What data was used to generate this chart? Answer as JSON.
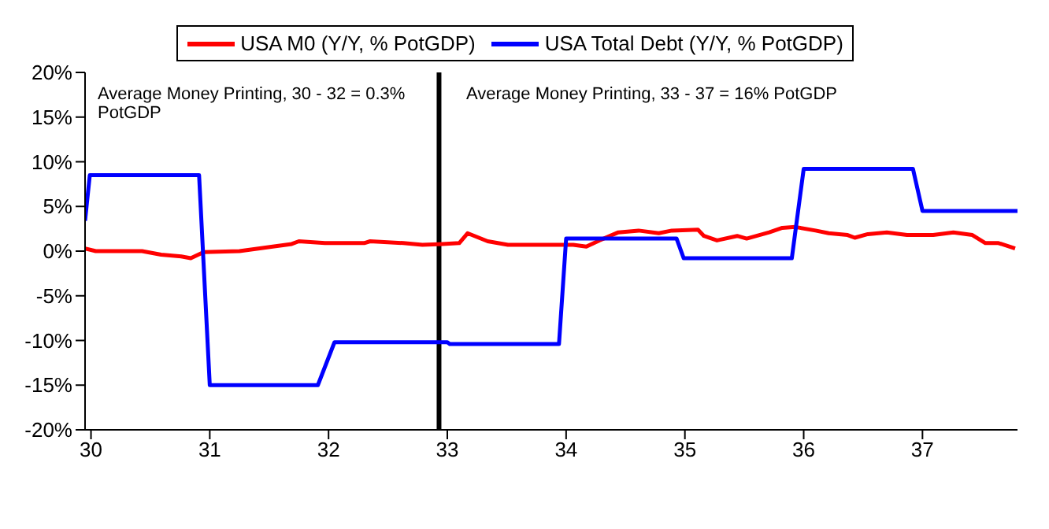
{
  "chart_data": {
    "type": "line",
    "xlim": [
      29.95,
      37.8
    ],
    "xticks": [
      30,
      31,
      32,
      33,
      34,
      35,
      36,
      37
    ],
    "ylim": [
      -20,
      20
    ],
    "yticks": [
      {
        "value": -20,
        "label": "-20%"
      },
      {
        "value": -15,
        "label": "-15%"
      },
      {
        "value": -10,
        "label": "-10%"
      },
      {
        "value": -5,
        "label": "-5%"
      },
      {
        "value": 0,
        "label": "0%"
      },
      {
        "value": 5,
        "label": "5%"
      },
      {
        "value": 10,
        "label": "10%"
      },
      {
        "value": 15,
        "label": "15%"
      },
      {
        "value": 20,
        "label": "20%"
      }
    ],
    "grid": false,
    "legend": "top",
    "marker": "none",
    "line_style": "solid",
    "series": [
      {
        "name": "USA M0 (Y/Y, % PotGDP)",
        "color": "#ff0000",
        "x": [
          29.95,
          30.04,
          30.43,
          30.59,
          30.76,
          30.84,
          30.95,
          31.25,
          31.53,
          31.69,
          31.75,
          31.97,
          32.3,
          32.35,
          32.63,
          32.79,
          32.96,
          33.1,
          33.17,
          33.34,
          33.51,
          34.06,
          34.17,
          34.28,
          34.44,
          34.61,
          34.78,
          34.89,
          35.11,
          35.16,
          35.27,
          35.44,
          35.52,
          35.71,
          35.82,
          35.93,
          36.1,
          36.21,
          36.37,
          36.43,
          36.54,
          36.7,
          36.87,
          37.09,
          37.26,
          37.42,
          37.53,
          37.64,
          37.78
        ],
        "values": [
          0.3,
          0,
          0,
          -0.4,
          -0.6,
          -0.8,
          -0.1,
          0,
          0.5,
          0.8,
          1.1,
          0.9,
          0.9,
          1.1,
          0.9,
          0.7,
          0.8,
          0.9,
          2.0,
          1.1,
          0.7,
          0.7,
          0.5,
          1.2,
          2.1,
          2.3,
          2.0,
          2.3,
          2.4,
          1.7,
          1.2,
          1.7,
          1.4,
          2.1,
          2.6,
          2.7,
          2.3,
          2.0,
          1.8,
          1.5,
          1.9,
          2.1,
          1.8,
          1.8,
          2.1,
          1.8,
          0.9,
          0.9,
          0.3
        ]
      },
      {
        "name": "USA Total Debt (Y/Y, % PotGDP)",
        "color": "#0000ff",
        "x": [
          29.95,
          29.99,
          30.91,
          31.0,
          31.91,
          32.05,
          33.0,
          33.02,
          33.94,
          34.0,
          34.93,
          34.99,
          35.9,
          36.0,
          36.92,
          37.0,
          37.8
        ],
        "values": [
          3.4,
          8.5,
          8.5,
          -15,
          -15,
          -10.2,
          -10.2,
          -10.4,
          -10.4,
          1.4,
          1.4,
          -0.8,
          -0.8,
          9.2,
          9.2,
          4.5,
          4.5
        ]
      }
    ],
    "ref_lines": [
      {
        "axis": "x",
        "value": 32.93,
        "color": "#000000",
        "line_style": "solid"
      }
    ],
    "annotations": [
      "Average Money Printing,  30 - 32 = 0.3% PotGDP",
      "Average Money Printing, 33 - 37 = 16% PotGDP"
    ]
  }
}
